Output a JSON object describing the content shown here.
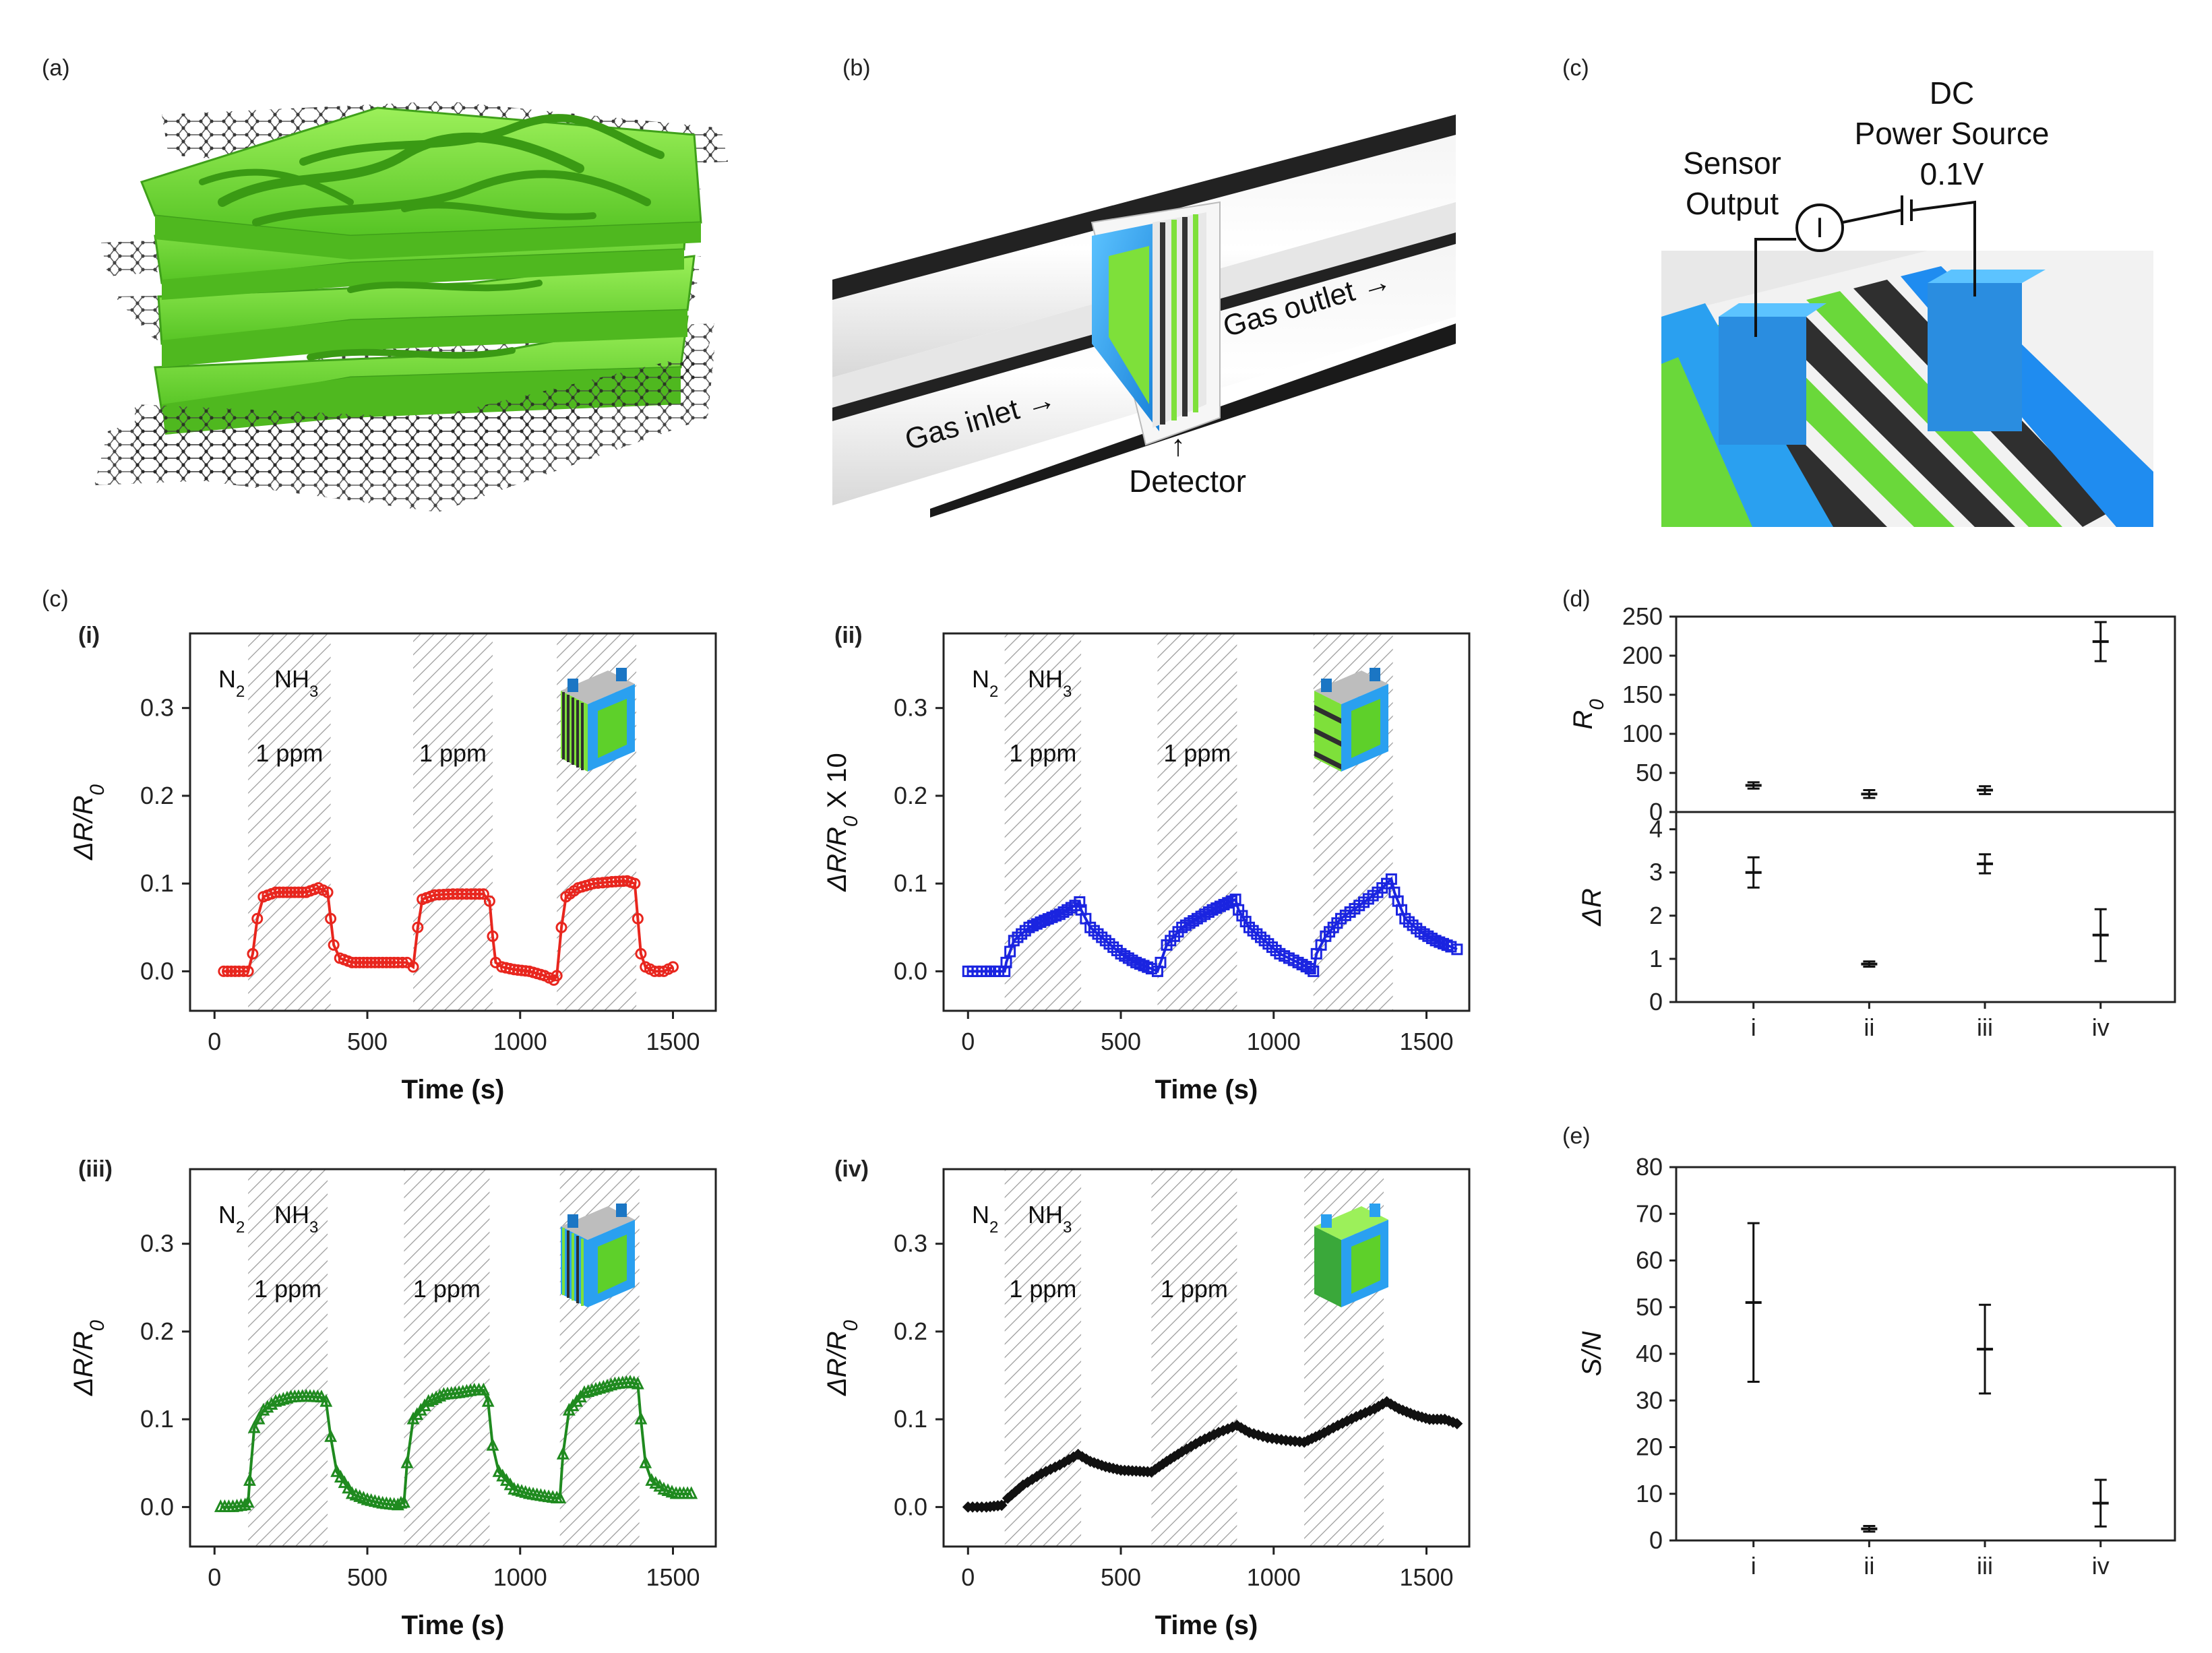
{
  "panels": {
    "a": "(a)",
    "b": "(b)",
    "c_top": "(c)",
    "c": "(c)",
    "d": "(d)",
    "e": "(e)"
  },
  "schematic_b": {
    "gas_inlet": "Gas inlet →",
    "gas_outlet": "Gas outlet →",
    "detector_arrow": "↑",
    "detector": "Detector"
  },
  "schematic_c": {
    "sensor_output_1": "Sensor",
    "sensor_output_2": "Output",
    "dc_1": "DC",
    "dc_2": "Power Source",
    "voltage": "0.1V",
    "ammeter": "I"
  },
  "colors": {
    "red": "#e8261e",
    "blue": "#1a24e0",
    "green": "#1f8a1f",
    "black": "#111111",
    "hatch": "#9a9a9a",
    "sensor_green": "#7ee03a",
    "sensor_blue": "#2aa0f0"
  },
  "chart_data": [
    {
      "id": "c-i",
      "type": "line",
      "label": "(i)",
      "gas_labels": {
        "n2": "N",
        "n2_sub": "2",
        "nh3": "NH",
        "nh3_sub": "3"
      },
      "conc_labels": [
        "1 ppm",
        "1 ppm"
      ],
      "xlabel": "Time (s)",
      "ylabel": "ΔR/R0",
      "ylabel_main": "ΔR/R",
      "ylabel_sub": "0",
      "ylabel_suffix": "",
      "xlim": [
        -80,
        1640
      ],
      "ylim": [
        -0.045,
        0.385
      ],
      "xticks": [
        "0",
        "500",
        "1000",
        "1500"
      ],
      "xtick_values": [
        0,
        500,
        1000,
        1500
      ],
      "yticks": [
        "0.0",
        "0.1",
        "0.2",
        "0.3"
      ],
      "ytick_values": [
        0,
        0.1,
        0.2,
        0.3
      ],
      "exposure_windows": [
        [
          110,
          380
        ],
        [
          650,
          910
        ],
        [
          1120,
          1380
        ]
      ],
      "color": "#e8261e",
      "marker": "circle",
      "series": {
        "x": [
          30,
          80,
          110,
          125,
          140,
          160,
          200,
          250,
          300,
          340,
          370,
          380,
          390,
          410,
          450,
          500,
          550,
          600,
          630,
          650,
          665,
          680,
          720,
          780,
          840,
          880,
          900,
          910,
          920,
          940,
          980,
          1030,
          1080,
          1110,
          1120,
          1135,
          1150,
          1190,
          1240,
          1300,
          1350,
          1375,
          1385,
          1395,
          1410,
          1440,
          1470,
          1500
        ],
        "values": [
          0.0,
          0.0,
          0.0,
          0.02,
          0.06,
          0.085,
          0.09,
          0.09,
          0.09,
          0.095,
          0.09,
          0.06,
          0.03,
          0.015,
          0.01,
          0.01,
          0.01,
          0.01,
          0.01,
          0.005,
          0.05,
          0.082,
          0.087,
          0.088,
          0.088,
          0.088,
          0.08,
          0.04,
          0.01,
          0.005,
          0.002,
          0.0,
          -0.005,
          -0.01,
          -0.005,
          0.05,
          0.085,
          0.095,
          0.1,
          0.102,
          0.103,
          0.1,
          0.06,
          0.02,
          0.005,
          0.0,
          0.0,
          0.005
        ]
      },
      "inset": "layered-vertical"
    },
    {
      "id": "c-ii",
      "type": "line",
      "label": "(ii)",
      "gas_labels": {
        "n2": "N",
        "n2_sub": "2",
        "nh3": "NH",
        "nh3_sub": "3"
      },
      "conc_labels": [
        "1 ppm",
        "1 ppm"
      ],
      "xlabel": "Time (s)",
      "ylabel": "ΔR/R0 X 10",
      "ylabel_main": "ΔR/R",
      "ylabel_sub": "0",
      "ylabel_suffix": " X 10",
      "xlim": [
        -80,
        1640
      ],
      "ylim": [
        -0.045,
        0.385
      ],
      "xticks": [
        "0",
        "500",
        "1000",
        "1500"
      ],
      "xtick_values": [
        0,
        500,
        1000,
        1500
      ],
      "yticks": [
        "0.0",
        "0.1",
        "0.2",
        "0.3"
      ],
      "ytick_values": [
        0,
        0.1,
        0.2,
        0.3
      ],
      "exposure_windows": [
        [
          120,
          370
        ],
        [
          620,
          880
        ],
        [
          1130,
          1390
        ]
      ],
      "color": "#1a24e0",
      "marker": "square",
      "series": {
        "x": [
          0,
          60,
          100,
          120,
          125,
          150,
          200,
          250,
          300,
          350,
          365,
          370,
          400,
          450,
          500,
          550,
          600,
          620,
          630,
          650,
          700,
          750,
          800,
          850,
          875,
          885,
          920,
          970,
          1020,
          1080,
          1120,
          1130,
          1140,
          1170,
          1220,
          1280,
          1340,
          1385,
          1395,
          1430,
          1480,
          1530,
          1580,
          1600
        ],
        "values": [
          0.0,
          0.0,
          0.0,
          0.0,
          0.01,
          0.035,
          0.05,
          0.058,
          0.065,
          0.075,
          0.079,
          0.07,
          0.05,
          0.035,
          0.02,
          0.01,
          0.003,
          0.0,
          0.01,
          0.03,
          0.05,
          0.06,
          0.07,
          0.078,
          0.082,
          0.07,
          0.05,
          0.035,
          0.02,
          0.01,
          0.003,
          0.0,
          0.02,
          0.04,
          0.06,
          0.075,
          0.09,
          0.105,
          0.09,
          0.06,
          0.045,
          0.035,
          0.028,
          0.025
        ]
      },
      "inset": "layered-horizontal"
    },
    {
      "id": "c-iii",
      "type": "line",
      "label": "(iii)",
      "gas_labels": {
        "n2": "N",
        "n2_sub": "2",
        "nh3": "NH",
        "nh3_sub": "3"
      },
      "conc_labels": [
        "1 ppm",
        "1 ppm"
      ],
      "xlabel": "Time (s)",
      "ylabel": "ΔR/R0",
      "ylabel_main": "ΔR/R",
      "ylabel_sub": "0",
      "ylabel_suffix": "",
      "xlim": [
        -80,
        1640
      ],
      "ylim": [
        -0.045,
        0.385
      ],
      "xticks": [
        "0",
        "500",
        "1000",
        "1500"
      ],
      "xtick_values": [
        0,
        500,
        1000,
        1500
      ],
      "yticks": [
        "0.0",
        "0.1",
        "0.2",
        "0.3"
      ],
      "ytick_values": [
        0,
        0.1,
        0.2,
        0.3
      ],
      "exposure_windows": [
        [
          110,
          370
        ],
        [
          620,
          900
        ],
        [
          1130,
          1390
        ]
      ],
      "color": "#1f8a1f",
      "marker": "triangle",
      "series": {
        "x": [
          20,
          60,
          100,
          110,
          115,
          130,
          160,
          200,
          250,
          300,
          350,
          365,
          380,
          400,
          450,
          500,
          550,
          600,
          610,
          620,
          630,
          650,
          700,
          750,
          800,
          850,
          880,
          895,
          910,
          930,
          980,
          1030,
          1080,
          1120,
          1130,
          1140,
          1160,
          1210,
          1260,
          1310,
          1360,
          1385,
          1395,
          1410,
          1430,
          1470,
          1510,
          1560
        ],
        "values": [
          0.0,
          0.0,
          0.002,
          0.005,
          0.03,
          0.09,
          0.11,
          0.12,
          0.125,
          0.126,
          0.125,
          0.12,
          0.08,
          0.04,
          0.015,
          0.008,
          0.004,
          0.002,
          0.004,
          0.005,
          0.05,
          0.1,
          0.12,
          0.128,
          0.13,
          0.133,
          0.133,
          0.12,
          0.07,
          0.04,
          0.02,
          0.015,
          0.012,
          0.01,
          0.01,
          0.06,
          0.11,
          0.13,
          0.135,
          0.14,
          0.142,
          0.14,
          0.1,
          0.05,
          0.03,
          0.02,
          0.015,
          0.015
        ]
      },
      "inset": "layered-vertical-blue"
    },
    {
      "id": "c-iv",
      "type": "line",
      "label": "(iv)",
      "gas_labels": {
        "n2": "N",
        "n2_sub": "2",
        "nh3": "NH",
        "nh3_sub": "3"
      },
      "conc_labels": [
        "1 ppm",
        "1 ppm"
      ],
      "xlabel": "Time (s)",
      "ylabel": "ΔR/R0",
      "ylabel_main": "ΔR/R",
      "ylabel_sub": "0",
      "ylabel_suffix": "",
      "xlim": [
        -80,
        1640
      ],
      "ylim": [
        -0.045,
        0.385
      ],
      "xticks": [
        "0",
        "500",
        "1000",
        "1500"
      ],
      "xtick_values": [
        0,
        500,
        1000,
        1500
      ],
      "yticks": [
        "0.0",
        "0.1",
        "0.2",
        "0.3"
      ],
      "ytick_values": [
        0,
        0.1,
        0.2,
        0.3
      ],
      "exposure_windows": [
        [
          120,
          370
        ],
        [
          600,
          880
        ],
        [
          1100,
          1360
        ]
      ],
      "color": "#111111",
      "marker": "diamond",
      "series": {
        "x": [
          0,
          60,
          110,
          130,
          180,
          240,
          300,
          360,
          400,
          450,
          500,
          550,
          600,
          650,
          700,
          760,
          820,
          880,
          920,
          980,
          1040,
          1100,
          1150,
          1210,
          1270,
          1330,
          1370,
          1410,
          1460,
          1510,
          1560,
          1600
        ],
        "values": [
          0.0,
          0.0,
          0.002,
          0.01,
          0.025,
          0.038,
          0.048,
          0.06,
          0.052,
          0.046,
          0.042,
          0.041,
          0.04,
          0.052,
          0.063,
          0.075,
          0.085,
          0.093,
          0.085,
          0.079,
          0.076,
          0.074,
          0.082,
          0.093,
          0.103,
          0.112,
          0.12,
          0.112,
          0.105,
          0.1,
          0.1,
          0.095
        ]
      },
      "inset": "solid-cube"
    },
    {
      "id": "d-top",
      "type": "scatter",
      "ylabel": "R0",
      "ylabel_main": "R",
      "ylabel_sub": "0",
      "categories": [
        "i",
        "ii",
        "iii",
        "iv"
      ],
      "ylim": [
        0,
        250
      ],
      "yticks": [
        "0",
        "50",
        "100",
        "150",
        "200",
        "250"
      ],
      "ytick_values": [
        0,
        50,
        100,
        150,
        200,
        250
      ],
      "series": [
        {
          "name": "R0",
          "values": [
            34,
            23,
            28,
            218
          ],
          "err": [
            4,
            5,
            5,
            25
          ]
        }
      ]
    },
    {
      "id": "d-bottom",
      "type": "scatter",
      "ylabel": "ΔR",
      "categories": [
        "i",
        "ii",
        "iii",
        "iv"
      ],
      "ylim": [
        0,
        4.4
      ],
      "yticks": [
        "0",
        "1",
        "2",
        "3",
        "4"
      ],
      "ytick_values": [
        0,
        1,
        2,
        3,
        4
      ],
      "series": [
        {
          "name": "ΔR",
          "values": [
            3.0,
            0.88,
            3.2,
            1.55
          ],
          "err": [
            0.35,
            0.06,
            0.22,
            0.6
          ]
        }
      ]
    },
    {
      "id": "e",
      "type": "scatter",
      "ylabel": "S/N",
      "categories": [
        "i",
        "ii",
        "iii",
        "iv"
      ],
      "ylim": [
        0,
        80
      ],
      "yticks": [
        "0",
        "10",
        "20",
        "30",
        "40",
        "50",
        "60",
        "70",
        "80"
      ],
      "ytick_values": [
        0,
        10,
        20,
        30,
        40,
        50,
        60,
        70,
        80
      ],
      "series": [
        {
          "name": "S/N",
          "values": [
            51,
            2.5,
            41,
            8
          ],
          "err": [
            17,
            0.6,
            9.5,
            5
          ]
        }
      ]
    }
  ]
}
